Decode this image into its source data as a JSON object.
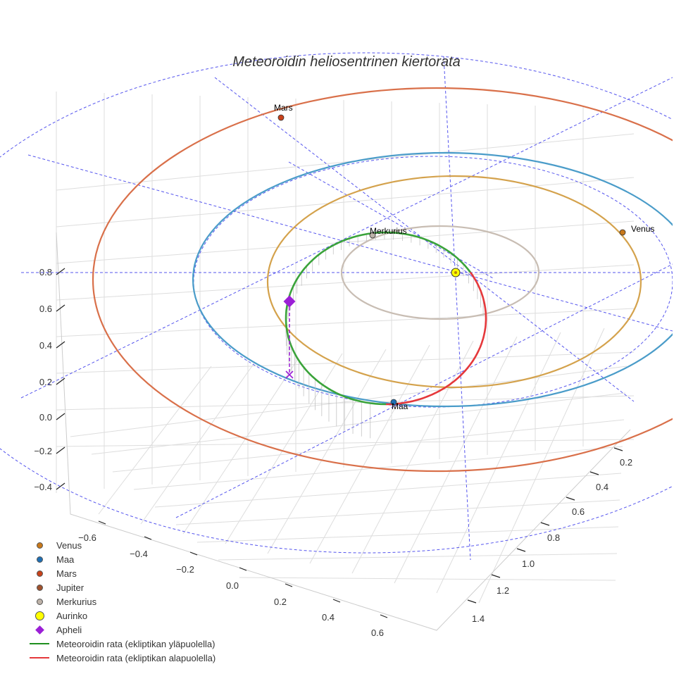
{
  "chart_data": {
    "type": "line",
    "title": "Meteoroidin heliosentrinen kiertorata",
    "xlabel": "",
    "ylabel": "",
    "zlabel": "",
    "grid": true,
    "legend_position": "bottom-left",
    "x_ticks": [
      "−0.6",
      "−0.4",
      "−0.2",
      "0.0",
      "0.2",
      "0.4",
      "0.6"
    ],
    "y_ticks": [
      "0.2",
      "0.4",
      "0.6",
      "0.8",
      "1.0",
      "1.2",
      "1.4"
    ],
    "z_ticks": [
      "0.8",
      "0.6",
      "0.4",
      "0.2",
      "0.0",
      "−0.2",
      "−0.4"
    ],
    "planet_orbits": [
      {
        "name": "Merkurius",
        "semi_major_axis_au": 0.39,
        "color": "#c8bdb3"
      },
      {
        "name": "Venus",
        "semi_major_axis_au": 0.72,
        "color": "#d4a24c"
      },
      {
        "name": "Maa",
        "semi_major_axis_au": 1.0,
        "color": "#4a9cc9"
      },
      {
        "name": "Mars",
        "semi_major_axis_au": 1.52,
        "color": "#d9704a"
      }
    ],
    "planets": [
      {
        "name": "Merkurius",
        "label": "Merkurius",
        "color": "#bdb2a8"
      },
      {
        "name": "Venus",
        "label": "Venus",
        "color": "#c8781a"
      },
      {
        "name": "Maa",
        "label": "Maa",
        "color": "#1f6fb4"
      },
      {
        "name": "Mars",
        "label": "Mars",
        "color": "#c8421a"
      }
    ],
    "meteoroid_orbit": {
      "above_ecliptic_color": "#3aa33a",
      "below_ecliptic_color": "#e5383b"
    },
    "legend": [
      {
        "label": "Venus",
        "marker": "dot",
        "color": "#c8781a"
      },
      {
        "label": "Maa",
        "marker": "dot",
        "color": "#1f6fb4"
      },
      {
        "label": "Mars",
        "marker": "dot",
        "color": "#c8421a"
      },
      {
        "label": "Jupiter",
        "marker": "dot",
        "color": "#a0522d"
      },
      {
        "label": "Merkurius",
        "marker": "dot",
        "color": "#bdb2a8"
      },
      {
        "label": "Aurinko",
        "marker": "dot-big",
        "color": "#ffff00"
      },
      {
        "label": "Apheli",
        "marker": "diamond",
        "color": "#9b1fd6"
      },
      {
        "label": "Meteoroidin rata (ekliptikan yläpuolella)",
        "marker": "line",
        "color": "#1f8f1f"
      },
      {
        "label": "Meteoroidin rata (ekliptikan alapuolella)",
        "marker": "line",
        "color": "#e5383b"
      }
    ],
    "sun_color": "#ffff00",
    "aphelion_color": "#9b1fd6",
    "guide_line_color": "#5555ee"
  }
}
